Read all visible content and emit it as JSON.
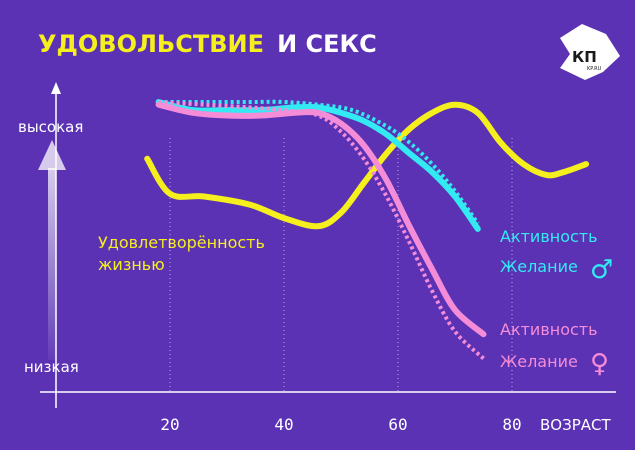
{
  "title": {
    "part1": "УДОВОЛЬСТВИЕ",
    "part2": "И СЕКС"
  },
  "logo": {
    "big": "КП",
    "small": "KP.RU"
  },
  "y_levels": {
    "high": "высокая",
    "low": "низкая"
  },
  "colors": {
    "background": "#5b32b4",
    "satisfaction": "#f5ef1e",
    "male": "#33eaf2",
    "female": "#f58cd7"
  },
  "chart_data": {
    "type": "line",
    "xlabel": "ВОЗРАСТ",
    "ylabel": "",
    "x_ticks": [
      20,
      40,
      60,
      80
    ],
    "xlim": [
      0,
      100
    ],
    "ylim": [
      0,
      100
    ],
    "grid": "vertical dotted at ticks",
    "series": [
      {
        "name": "Удовлетворённость жизнью",
        "color": "#f5ef1e",
        "style": "solid",
        "x": [
          16,
          20,
          26,
          34,
          40,
          46,
          50,
          54,
          58,
          62,
          66,
          70,
          74,
          78,
          82,
          86,
          89,
          93
        ],
        "y": [
          79,
          66,
          65,
          62,
          57,
          54,
          59,
          70,
          81,
          90,
          96,
          99,
          96,
          85,
          77,
          73,
          74,
          77
        ]
      },
      {
        "name": "Активность ♂",
        "color": "#33eaf2",
        "style": "solid",
        "x": [
          18,
          24,
          30,
          36,
          42,
          46,
          50,
          54,
          58,
          62,
          66,
          70,
          74
        ],
        "y": [
          100,
          97,
          97,
          97,
          98,
          98,
          96,
          93,
          88,
          81,
          74,
          65,
          53
        ]
      },
      {
        "name": "Желание ♂",
        "color": "#33eaf2",
        "style": "dotted",
        "x": [
          18,
          26,
          34,
          40,
          46,
          52,
          58,
          62,
          66,
          70,
          74
        ],
        "y": [
          100,
          100,
          100,
          100,
          99,
          97,
          91,
          85,
          77,
          67,
          55
        ]
      },
      {
        "name": "Активность ♀",
        "color": "#f58cd7",
        "style": "solid",
        "x": [
          18,
          24,
          30,
          36,
          42,
          46,
          50,
          54,
          58,
          62,
          66,
          70,
          75
        ],
        "y": [
          99,
          96,
          95,
          95,
          96,
          96,
          92,
          84,
          71,
          54,
          38,
          23,
          14
        ]
      },
      {
        "name": "Желание ♀",
        "color": "#f58cd7",
        "style": "dotted",
        "x": [
          18,
          26,
          34,
          40,
          46,
          50,
          54,
          58,
          62,
          66,
          70,
          75
        ],
        "y": [
          100,
          99,
          98,
          97,
          95,
          89,
          79,
          65,
          48,
          30,
          15,
          5
        ]
      }
    ]
  },
  "labels": {
    "satisfaction_line1": "Удовлетворённость",
    "satisfaction_line2": "жизнью",
    "male_activity": "Активность",
    "male_desire": "Желание",
    "female_activity": "Активность",
    "female_desire": "Желание",
    "male_symbol": "♂",
    "female_symbol": "♀"
  }
}
